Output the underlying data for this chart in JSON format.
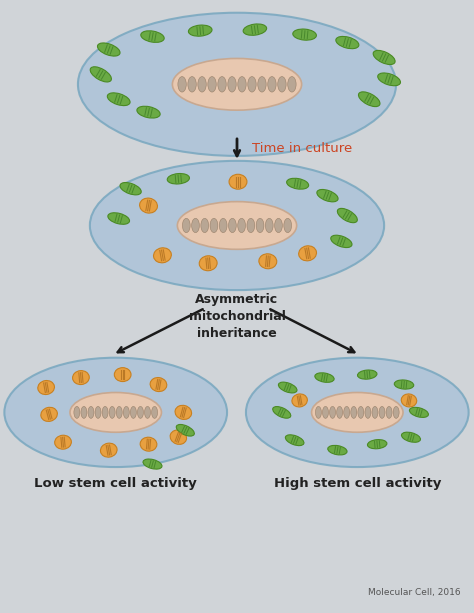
{
  "bg_color": "#d0d4d8",
  "cell_color": "#adc4d8",
  "cell_edge_color": "#7aa8c0",
  "nucleus_color": "#e8c8b0",
  "nucleus_edge_color": "#c8a890",
  "green_mito_color": "#6aaa44",
  "green_mito_edge": "#4a8a24",
  "orange_mito_color": "#e8a040",
  "orange_mito_edge": "#c88020",
  "dna_color": "#b0a090",
  "arrow_color": "#1a1a1a",
  "time_arrow_color": "#cc4422",
  "text_color": "#222222",
  "label_color": "#222222",
  "citation": "Molecular Cell, 2016",
  "label_low": "Low stem cell activity",
  "label_high": "High stem cell activity",
  "label_time": "Time in culture",
  "label_asym": "Asymmetric\nmitochondrial\ninheritance"
}
